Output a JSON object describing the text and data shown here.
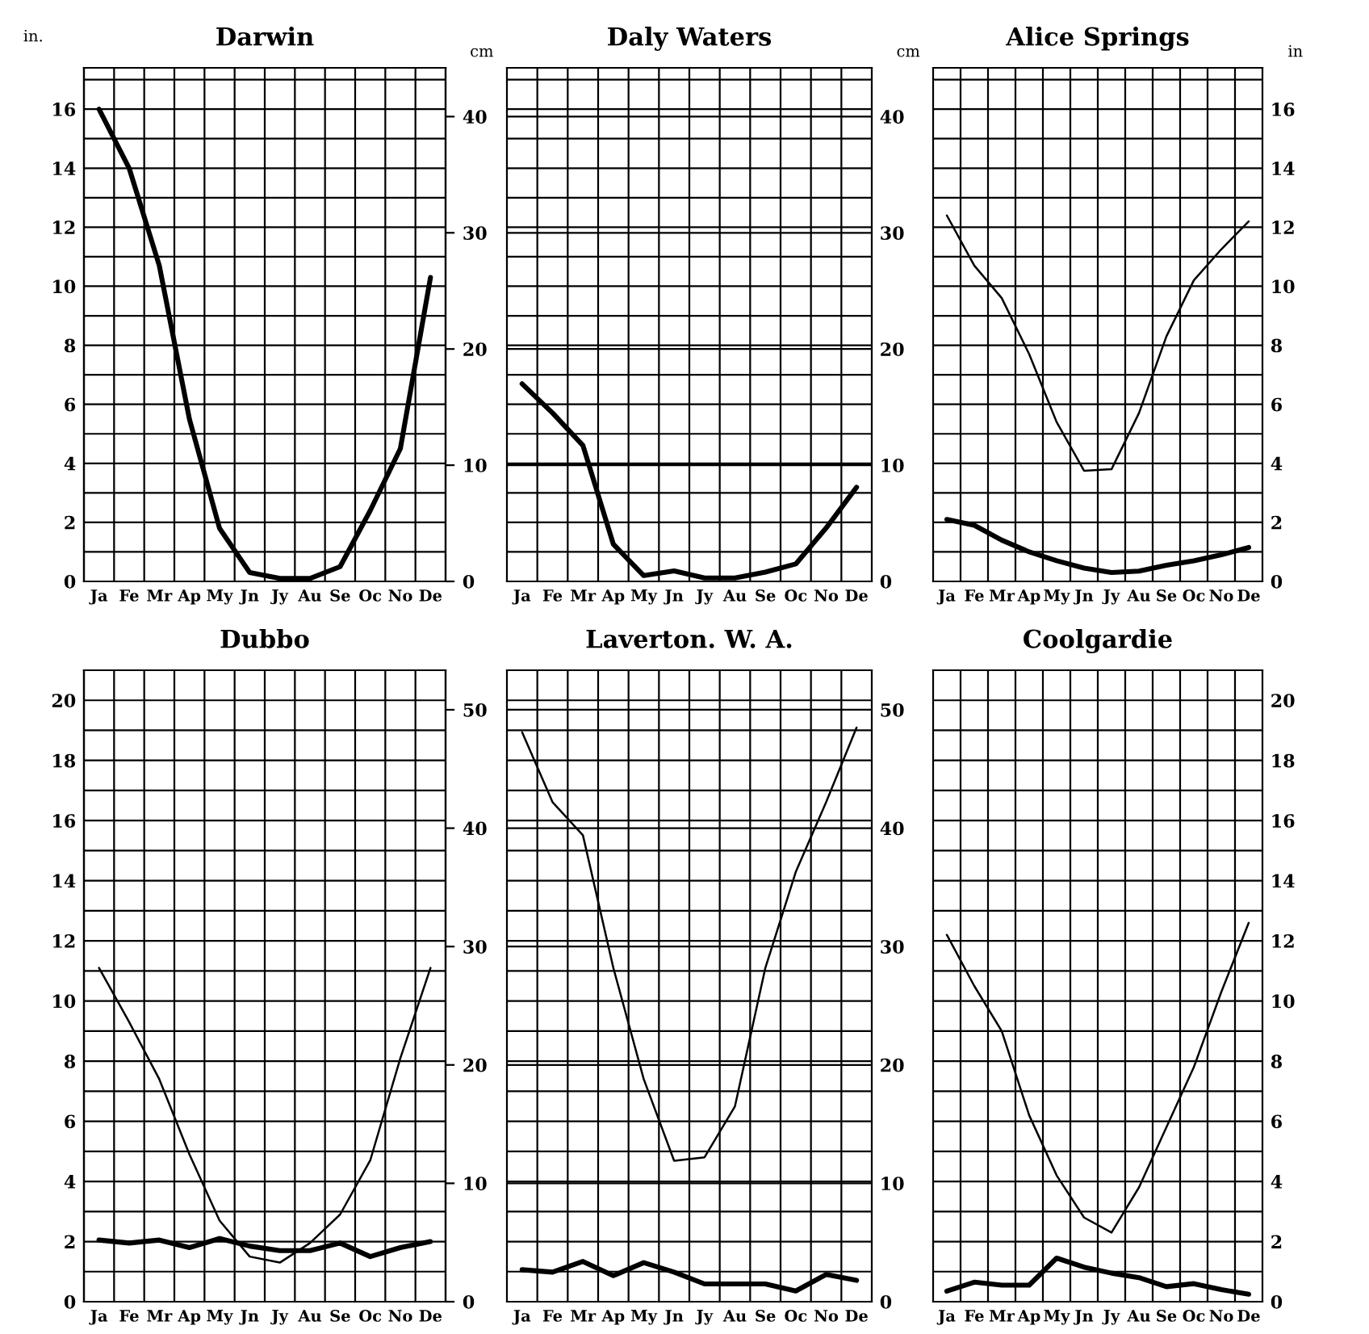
{
  "chart_data": [
    {
      "type": "line",
      "title": "Darwin",
      "ylabel": "in.",
      "y2label": "cm",
      "categories": [
        "Ja",
        "Fe",
        "Mr",
        "Ap",
        "My",
        "Jn",
        "Jy",
        "Au",
        "Se",
        "Oc",
        "No",
        "De"
      ],
      "series": [
        {
          "color": "#000000",
          "values": [
            16.0,
            14.0,
            10.7,
            5.5,
            1.8,
            0.3,
            0.1,
            0.1,
            0.5,
            2.4,
            4.5,
            10.3
          ]
        }
      ],
      "ylim": [
        0,
        17.4
      ],
      "yticks": [
        0,
        {
          "value": 1,
          "label": null
        },
        2,
        {
          "value": 3,
          "label": null
        },
        4,
        {
          "value": 5,
          "label": null
        },
        6,
        {
          "value": 7,
          "label": null
        },
        8,
        {
          "value": 9,
          "label": null
        },
        10,
        {
          "value": 11,
          "label": null
        },
        12,
        {
          "value": 13,
          "label": null
        },
        14,
        {
          "value": 15,
          "label": null
        },
        16,
        {
          "value": 17,
          "label": null
        }
      ],
      "y2lim": [
        0,
        44.196
      ],
      "y2ticks": [
        0,
        10,
        20,
        30,
        40
      ],
      "grid": true,
      "line_style": "solid",
      "marker": "none"
    },
    {
      "type": "line",
      "title": "Daly Waters",
      "y2label": "cm",
      "categories": [
        "Ja",
        "Fe",
        "Mr",
        "Ap",
        "My",
        "Jn",
        "Jy",
        "Au",
        "Se",
        "Oc",
        "No",
        "De"
      ],
      "series": [
        {
          "color": "#000000",
          "axis": "y2",
          "values": [
            17.0,
            14.5,
            11.7,
            3.2,
            0.5,
            0.9,
            0.3,
            0.3,
            0.8,
            1.5,
            4.6,
            8.1
          ]
        }
      ],
      "y2lim": [
        0,
        44.196
      ],
      "y2ticks": [
        0,
        {
          "value": 2.54,
          "label": null
        },
        {
          "value": 5.08,
          "label": null
        },
        {
          "value": 7.62,
          "label": null
        },
        10,
        {
          "value": 10.16,
          "label": null
        },
        {
          "value": 12.7,
          "label": null
        },
        {
          "value": 15.24,
          "label": null
        },
        {
          "value": 17.78,
          "label": null
        },
        20,
        {
          "value": 20.32,
          "label": null
        },
        {
          "value": 22.86,
          "label": null
        },
        {
          "value": 25.4,
          "label": null
        },
        {
          "value": 27.94,
          "label": null
        },
        30,
        {
          "value": 30.48,
          "label": null
        },
        {
          "value": 33.02,
          "label": null
        },
        {
          "value": 35.56,
          "label": null
        },
        {
          "value": 38.1,
          "label": null
        },
        40,
        {
          "value": 40.64,
          "label": null
        },
        {
          "value": 43.18,
          "label": null
        }
      ],
      "grid": true,
      "line_style": "solid",
      "marker": "none"
    },
    {
      "type": "line",
      "title": "Alice Springs",
      "y2label": "in",
      "categories": [
        "Ja",
        "Fe",
        "Mr",
        "Ap",
        "My",
        "Jn",
        "Jy",
        "Au",
        "Se",
        "Oc",
        "No",
        "De"
      ],
      "series": [
        {
          "color": "#000000",
          "axis": "y2",
          "values": [
            2.1,
            1.9,
            1.4,
            1.0,
            0.7,
            0.45,
            0.3,
            0.35,
            0.55,
            0.7,
            0.9,
            1.15
          ]
        },
        {
          "color": "#000000",
          "axis": "y2",
          "values": [
            12.4,
            10.7,
            9.6,
            7.7,
            5.4,
            3.75,
            3.8,
            5.7,
            8.3,
            10.2,
            11.25,
            12.2
          ]
        }
      ],
      "y2lim": [
        0,
        17.4
      ],
      "y2ticks": [
        0,
        {
          "value": 1,
          "label": null
        },
        2,
        {
          "value": 3,
          "label": null
        },
        4,
        {
          "value": 5,
          "label": null
        },
        6,
        {
          "value": 7,
          "label": null
        },
        8,
        {
          "value": 9,
          "label": null
        },
        10,
        {
          "value": 11,
          "label": null
        },
        12,
        {
          "value": 13,
          "label": null
        },
        14,
        {
          "value": 15,
          "label": null
        },
        16,
        {
          "value": 17,
          "label": null
        }
      ],
      "grid": true,
      "line_style": "solid",
      "marker": "none"
    },
    {
      "type": "line",
      "title": "Dubbo",
      "categories": [
        "Ja",
        "Fe",
        "Mr",
        "Ap",
        "My",
        "Jn",
        "Jy",
        "Au",
        "Se",
        "Oc",
        "No",
        "De"
      ],
      "series": [
        {
          "color": "#000000",
          "values": [
            2.05,
            1.95,
            2.05,
            1.8,
            2.1,
            1.85,
            1.7,
            1.7,
            1.95,
            1.5,
            1.8,
            2.0
          ]
        },
        {
          "color": "#000000",
          "values": [
            11.1,
            9.3,
            7.4,
            4.9,
            2.7,
            1.5,
            1.3,
            1.95,
            2.9,
            4.7,
            8.1,
            11.1
          ]
        }
      ],
      "ylim": [
        0,
        21
      ],
      "yticks": [
        0,
        {
          "value": 1,
          "label": null
        },
        2,
        {
          "value": 3,
          "label": null
        },
        4,
        {
          "value": 5,
          "label": null
        },
        6,
        {
          "value": 7,
          "label": null
        },
        8,
        {
          "value": 9,
          "label": null
        },
        10,
        {
          "value": 11,
          "label": null
        },
        12,
        {
          "value": 13,
          "label": null
        },
        14,
        {
          "value": 15,
          "label": null
        },
        16,
        {
          "value": 17,
          "label": null
        },
        18,
        {
          "value": 19,
          "label": null
        },
        20,
        {
          "value": 21,
          "label": null
        }
      ],
      "y2lim": [
        0,
        53.34
      ],
      "y2ticks": [
        0,
        10,
        20,
        30,
        40,
        50
      ],
      "grid": true,
      "line_style": "solid",
      "marker": "none"
    },
    {
      "type": "line",
      "title": "Laverton. W. A.",
      "categories": [
        "Ja",
        "Fe",
        "Mr",
        "Ap",
        "My",
        "Jn",
        "Jy",
        "Au",
        "Se",
        "Oc",
        "No",
        "De"
      ],
      "series": [
        {
          "color": "#000000",
          "axis": "y2",
          "values": [
            2.7,
            2.5,
            3.4,
            2.2,
            3.3,
            2.5,
            1.5,
            1.5,
            1.5,
            0.9,
            2.3,
            1.8
          ]
        },
        {
          "color": "#000000",
          "axis": "y2",
          "values": [
            48.1,
            42.2,
            39.4,
            28.2,
            18.8,
            11.9,
            12.2,
            16.5,
            28.2,
            36.3,
            42.2,
            48.5
          ]
        }
      ],
      "y2lim": [
        0,
        53.34
      ],
      "y2ticks": [
        0,
        {
          "value": 2.54,
          "label": null
        },
        {
          "value": 5.08,
          "label": null
        },
        {
          "value": 7.62,
          "label": null
        },
        10,
        {
          "value": 10.16,
          "label": null
        },
        {
          "value": 12.7,
          "label": null
        },
        {
          "value": 15.24,
          "label": null
        },
        {
          "value": 17.78,
          "label": null
        },
        20,
        {
          "value": 20.32,
          "label": null
        },
        {
          "value": 22.86,
          "label": null
        },
        {
          "value": 25.4,
          "label": null
        },
        {
          "value": 27.94,
          "label": null
        },
        30,
        {
          "value": 30.48,
          "label": null
        },
        {
          "value": 33.02,
          "label": null
        },
        {
          "value": 35.56,
          "label": null
        },
        {
          "value": 38.1,
          "label": null
        },
        40,
        {
          "value": 40.64,
          "label": null
        },
        {
          "value": 43.18,
          "label": null
        },
        {
          "value": 45.72,
          "label": null
        },
        {
          "value": 48.26,
          "label": null
        },
        50,
        {
          "value": 50.8,
          "label": null
        },
        {
          "value": 53.34,
          "label": null
        }
      ],
      "grid": true,
      "line_style": "solid",
      "marker": "none"
    },
    {
      "type": "line",
      "title": "Coolgardie",
      "categories": [
        "Ja",
        "Fe",
        "Mr",
        "Ap",
        "My",
        "Jn",
        "Jy",
        "Au",
        "Se",
        "Oc",
        "No",
        "De"
      ],
      "series": [
        {
          "color": "#000000",
          "axis": "y2",
          "values": [
            0.35,
            0.65,
            0.55,
            0.55,
            1.45,
            1.15,
            0.95,
            0.8,
            0.5,
            0.6,
            0.4,
            0.25
          ]
        },
        {
          "color": "#000000",
          "axis": "y2",
          "values": [
            12.2,
            10.5,
            9.0,
            6.2,
            4.2,
            2.8,
            2.3,
            3.8,
            5.8,
            7.8,
            10.3,
            12.6
          ]
        }
      ],
      "y2lim": [
        0,
        21
      ],
      "y2ticks": [
        0,
        {
          "value": 1,
          "label": null
        },
        2,
        {
          "value": 3,
          "label": null
        },
        4,
        {
          "value": 5,
          "label": null
        },
        6,
        {
          "value": 7,
          "label": null
        },
        8,
        {
          "value": 9,
          "label": null
        },
        10,
        {
          "value": 11,
          "label": null
        },
        12,
        {
          "value": 13,
          "label": null
        },
        14,
        {
          "value": 15,
          "label": null
        },
        16,
        {
          "value": 17,
          "label": null
        },
        18,
        {
          "value": 19,
          "label": null
        },
        20,
        {
          "value": 21,
          "label": null
        }
      ],
      "grid": true,
      "line_style": "solid",
      "marker": "none"
    }
  ]
}
